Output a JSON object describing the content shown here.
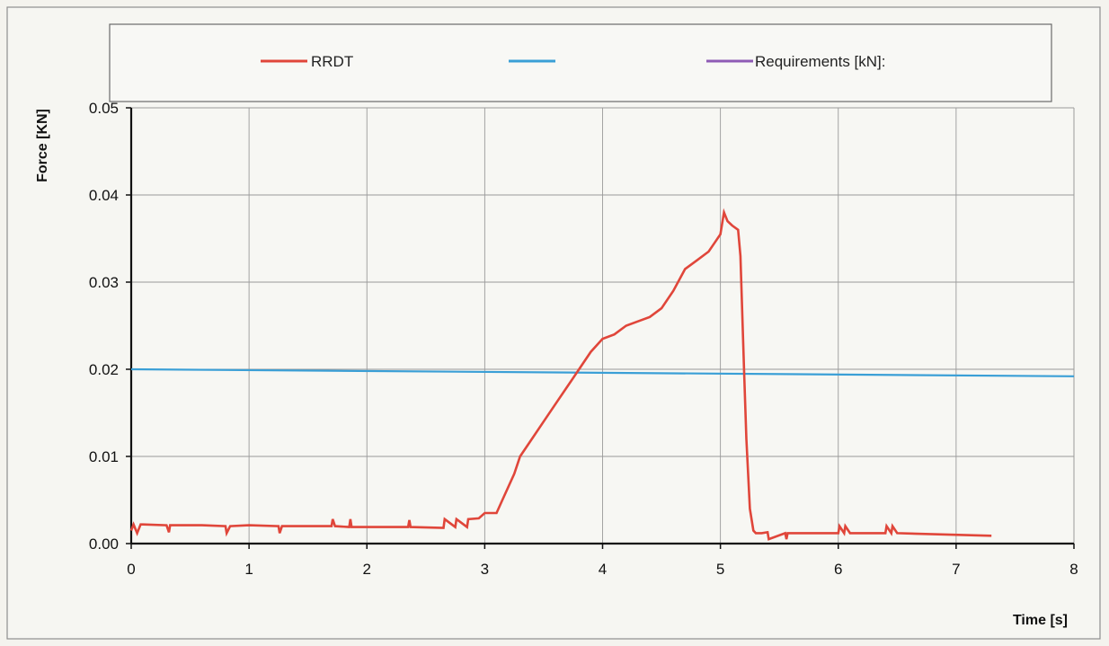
{
  "chart_data": {
    "type": "line",
    "title": "",
    "xlabel": "Time [s]",
    "ylabel": "Force [KN]",
    "xlim": [
      0,
      8
    ],
    "ylim": [
      0,
      0.05
    ],
    "x_ticks": [
      "0",
      "1",
      "2",
      "3",
      "4",
      "5",
      "6",
      "7",
      "8"
    ],
    "y_ticks": [
      "0.00",
      "0.01",
      "0.02",
      "0.03",
      "0.04",
      "0.05"
    ],
    "grid": true,
    "legend_position": "top",
    "legend": [
      {
        "label": "RRDT",
        "color": "#e0463a"
      },
      {
        "label": "",
        "color": "#3a9fd6"
      },
      {
        "label": "Requirements [kN]:",
        "color": "#8e5bb5"
      }
    ],
    "series": [
      {
        "name": "RRDT",
        "color": "#e0463a",
        "x": [
          0,
          0.02,
          0.05,
          0.08,
          0.1,
          0.3,
          0.32,
          0.33,
          0.6,
          0.8,
          0.81,
          0.84,
          1.0,
          1.25,
          1.26,
          1.28,
          1.7,
          1.71,
          1.73,
          1.85,
          1.86,
          1.87,
          2.35,
          2.36,
          2.37,
          2.65,
          2.66,
          2.75,
          2.76,
          2.85,
          2.86,
          2.95,
          3.0,
          3.1,
          3.15,
          3.25,
          3.3,
          3.4,
          3.5,
          3.6,
          3.7,
          3.8,
          3.9,
          4.0,
          4.1,
          4.2,
          4.3,
          4.4,
          4.5,
          4.6,
          4.7,
          4.8,
          4.9,
          4.95,
          5.0,
          5.03,
          5.06,
          5.1,
          5.15,
          5.17,
          5.2,
          5.22,
          5.25,
          5.28,
          5.3,
          5.35,
          5.4,
          5.41,
          5.55,
          5.56,
          5.57,
          5.6,
          6.0,
          6.01,
          6.05,
          6.06,
          6.1,
          6.4,
          6.41,
          6.45,
          6.46,
          6.5,
          7.3
        ],
        "y": [
          0.0015,
          0.0022,
          0.0012,
          0.0022,
          0.0022,
          0.0021,
          0.0013,
          0.0021,
          0.0021,
          0.002,
          0.0012,
          0.002,
          0.0021,
          0.002,
          0.0012,
          0.002,
          0.002,
          0.0028,
          0.002,
          0.0019,
          0.0028,
          0.0019,
          0.0019,
          0.0027,
          0.0019,
          0.0018,
          0.0028,
          0.0019,
          0.0028,
          0.0019,
          0.0028,
          0.0029,
          0.0035,
          0.0035,
          0.005,
          0.008,
          0.01,
          0.012,
          0.014,
          0.016,
          0.018,
          0.02,
          0.022,
          0.0235,
          0.024,
          0.025,
          0.0255,
          0.026,
          0.027,
          0.029,
          0.0315,
          0.0325,
          0.0335,
          0.0345,
          0.0355,
          0.038,
          0.037,
          0.0365,
          0.036,
          0.033,
          0.02,
          0.012,
          0.004,
          0.0015,
          0.0012,
          0.0012,
          0.0013,
          0.0005,
          0.0012,
          0.0005,
          0.0012,
          0.0012,
          0.0012,
          0.002,
          0.0012,
          0.002,
          0.0012,
          0.0012,
          0.002,
          0.0012,
          0.002,
          0.0012,
          0.0009
        ]
      },
      {
        "name": "",
        "color": "#3a9fd6",
        "x": [
          0,
          8
        ],
        "y": [
          0.02,
          0.0192
        ]
      }
    ]
  }
}
